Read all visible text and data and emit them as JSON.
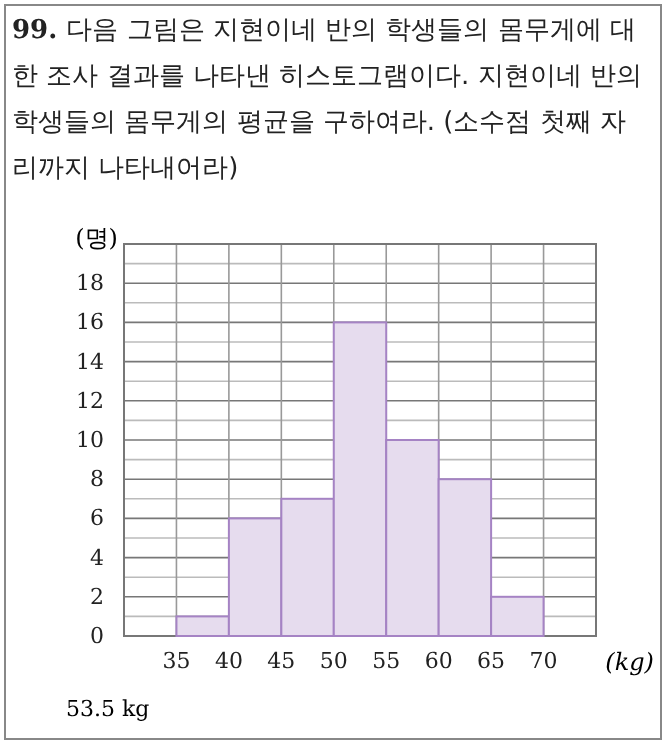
{
  "chart_data": {
    "type": "histogram",
    "title": "99. 다음 그림은 지현이네 반의 학생들의 몸무게에 대한 조사 결과를 나타낸 히스토그램이다. 지현이네 반의 학생들의 몸무게의 평균을 구하여라. (소수점 첫째 자리까지 나타내어라)",
    "bins": [
      35,
      40,
      45,
      50,
      55,
      60,
      65,
      70
    ],
    "values": [
      1,
      6,
      7,
      16,
      10,
      8,
      2
    ],
    "color": "#e6dcee",
    "xlim": [
      30,
      75
    ],
    "xticks": [
      35,
      40,
      45,
      50,
      55,
      60,
      65,
      70
    ],
    "ylim": [
      0,
      20
    ],
    "yticks": [
      0,
      {
        "value": 1,
        "label": null
      },
      2,
      {
        "value": 3,
        "label": null
      },
      4,
      {
        "value": 5,
        "label": null
      },
      6,
      {
        "value": 7,
        "label": null
      },
      8,
      {
        "value": 9,
        "label": null
      },
      10,
      {
        "value": 11,
        "label": null
      },
      12,
      {
        "value": 13,
        "label": null
      },
      14,
      {
        "value": 15,
        "label": null
      },
      16,
      {
        "value": 17,
        "label": null
      },
      18,
      {
        "value": 19,
        "label": null
      }
    ],
    "ylabel": "(명)",
    "xlabel": "(kg)",
    "grid": true,
    "annotations": [
      "53.5 kg"
    ]
  }
}
